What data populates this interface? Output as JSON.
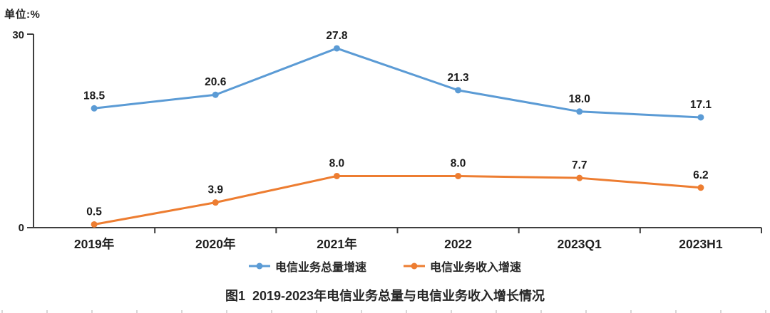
{
  "chart_data": {
    "type": "line",
    "title": "图1  2019-2023年电信业务总量与电信业务收入增长情况",
    "unit_label": "单位:%",
    "categories": [
      "2019年",
      "2020年",
      "2021年",
      "2022",
      "2023Q1",
      "2023H1"
    ],
    "series": [
      {
        "name": "电信业务总量增速",
        "color": "#5B9BD5",
        "values": [
          18.5,
          20.6,
          27.8,
          21.3,
          18.0,
          17.1
        ]
      },
      {
        "name": "电信业务收入增速",
        "color": "#ED7D31",
        "values": [
          0.5,
          3.9,
          8.0,
          8.0,
          7.7,
          6.2
        ]
      }
    ],
    "ylim": [
      0,
      30
    ],
    "y_tick_labels": [
      "0",
      "30"
    ],
    "grid": false,
    "legend_position": "bottom",
    "value_label_decimals": 1
  },
  "colors": {
    "axis": "#3f3f3f",
    "data_label": "#1a1a1a",
    "category_label": "#1f1f1f"
  }
}
